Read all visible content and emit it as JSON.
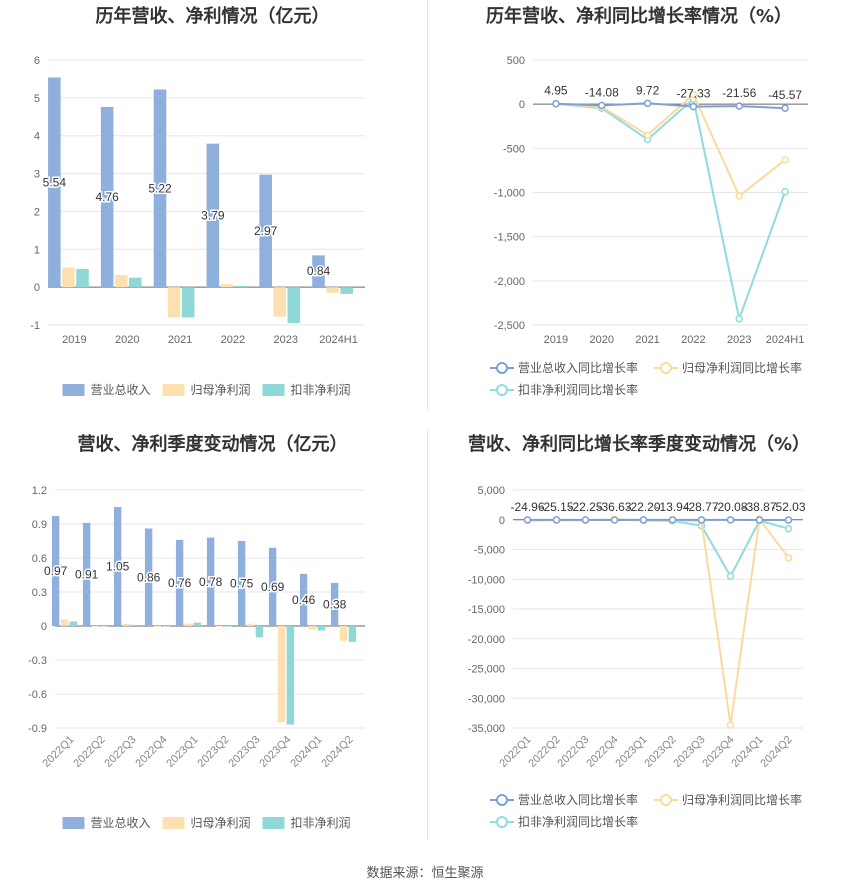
{
  "chart_data": [
    {
      "type": "bar",
      "title": "历年营收、净利情况（亿元）",
      "categories": [
        "2019",
        "2020",
        "2021",
        "2022",
        "2023",
        "2024H1"
      ],
      "series": [
        {
          "name": "营业总收入",
          "values": [
            5.54,
            4.76,
            5.22,
            3.79,
            2.97,
            0.84
          ],
          "color": "#8fb0dd"
        },
        {
          "name": "归母净利润",
          "values": [
            0.52,
            0.32,
            -0.8,
            0.08,
            -0.78,
            -0.15
          ],
          "color": "#fde0b0"
        },
        {
          "name": "扣非净利润",
          "values": [
            0.48,
            0.25,
            -0.8,
            0.03,
            -0.95,
            -0.18
          ],
          "color": "#8fd8d8"
        }
      ],
      "data_labels": [
        "5.54",
        "4.76",
        "5.22",
        "3.79",
        "2.97",
        "0.84"
      ],
      "yticks": [
        "-1",
        "0",
        "1",
        "2",
        "3",
        "4",
        "5",
        "6"
      ],
      "ylim": [
        -1,
        6
      ],
      "legend": "bottom",
      "grid": true
    },
    {
      "type": "line",
      "title": "历年营收、净利同比增长率情况（%）",
      "categories": [
        "2019",
        "2020",
        "2021",
        "2022",
        "2023",
        "2024H1"
      ],
      "series": [
        {
          "name": "营业总收入同比增长率",
          "values": [
            4.95,
            -14.08,
            9.72,
            -27.33,
            -21.56,
            -45.57
          ],
          "color": "#7f9fd5"
        },
        {
          "name": "归母净利润同比增长率",
          "values": [
            5,
            -30,
            -350,
            110,
            -1040,
            -630
          ],
          "color": "#fdd9a0"
        },
        {
          "name": "扣非净利润同比增长率",
          "values": [
            3,
            -45,
            -400,
            60,
            -2430,
            -990
          ],
          "color": "#8fdcdc"
        }
      ],
      "data_labels": [
        "4.95",
        "-14.08",
        "9.72",
        "-27.33",
        "-21.56",
        "-45.57"
      ],
      "yticks": [
        "-2,500",
        "-2,000",
        "-1,500",
        "-1,000",
        "-500",
        "0",
        "500"
      ],
      "ylim": [
        -2500,
        500
      ],
      "legend": "bottom",
      "grid": true
    },
    {
      "type": "bar",
      "title": "营收、净利季度变动情况（亿元）",
      "categories": [
        "2022Q1",
        "2022Q2",
        "2022Q3",
        "2022Q4",
        "2023Q1",
        "2023Q2",
        "2023Q3",
        "2023Q4",
        "2024Q1",
        "2024Q2"
      ],
      "series": [
        {
          "name": "营业总收入",
          "values": [
            0.97,
            0.91,
            1.05,
            0.86,
            0.76,
            0.78,
            0.75,
            0.69,
            0.46,
            0.38
          ],
          "color": "#8fb0dd"
        },
        {
          "name": "归母净利润",
          "values": [
            0.06,
            0.0,
            0.02,
            0.0,
            0.02,
            0.0,
            0.02,
            -0.85,
            -0.03,
            -0.13
          ],
          "color": "#fde0b0"
        },
        {
          "name": "扣非净利润",
          "values": [
            0.04,
            0.0,
            0.01,
            0.0,
            0.03,
            0.0,
            -0.1,
            -0.87,
            -0.04,
            -0.14
          ],
          "color": "#8fd8d8"
        }
      ],
      "data_labels": [
        "0.97",
        "0.91",
        "1.05",
        "0.86",
        "0.76",
        "0.78",
        "0.75",
        "0.69",
        "0.46",
        "0.38"
      ],
      "yticks": [
        "-0.9",
        "-0.6",
        "-0.3",
        "0",
        "0.3",
        "0.6",
        "0.9",
        "1.2"
      ],
      "ylim": [
        -0.9,
        1.2
      ],
      "legend": "bottom",
      "grid": true
    },
    {
      "type": "line",
      "title": "营收、净利同比增长率季度变动情况（%）",
      "categories": [
        "2022Q1",
        "2022Q2",
        "2022Q3",
        "2022Q4",
        "2023Q1",
        "2023Q2",
        "2023Q3",
        "2023Q4",
        "2024Q1",
        "2024Q2"
      ],
      "series": [
        {
          "name": "营业总收入同比增长率",
          "values": [
            -24.96,
            -25.15,
            -22.25,
            -36.63,
            -22.2,
            -13.94,
            -28.77,
            -20.08,
            -38.87,
            -52.03
          ],
          "color": "#7f9fd5"
        },
        {
          "name": "归母净利润同比增长率",
          "values": [
            -100,
            -80,
            -60,
            50,
            -50,
            -150,
            -200,
            -34500,
            100,
            -6400
          ],
          "color": "#fdd9a0"
        },
        {
          "name": "扣非净利润同比增长率",
          "values": [
            -120,
            -90,
            -70,
            20,
            -100,
            -200,
            -1000,
            -9500,
            -150,
            -1500
          ],
          "color": "#8fdcdc"
        }
      ],
      "data_labels": [
        "-24.96",
        "-25.15",
        "-22.25",
        "-36.63",
        "-22.20",
        "-13.94",
        "-28.77",
        "-20.08",
        "-38.87",
        "-52.03"
      ],
      "yticks": [
        "-35,000",
        "-30,000",
        "-25,000",
        "-20,000",
        "-15,000",
        "-10,000",
        "-5,000",
        "0",
        "5,000"
      ],
      "ylim": [
        -35000,
        5000
      ],
      "legend": "bottom",
      "grid": true
    }
  ],
  "footer": {
    "source": "数据来源：恒生聚源"
  }
}
